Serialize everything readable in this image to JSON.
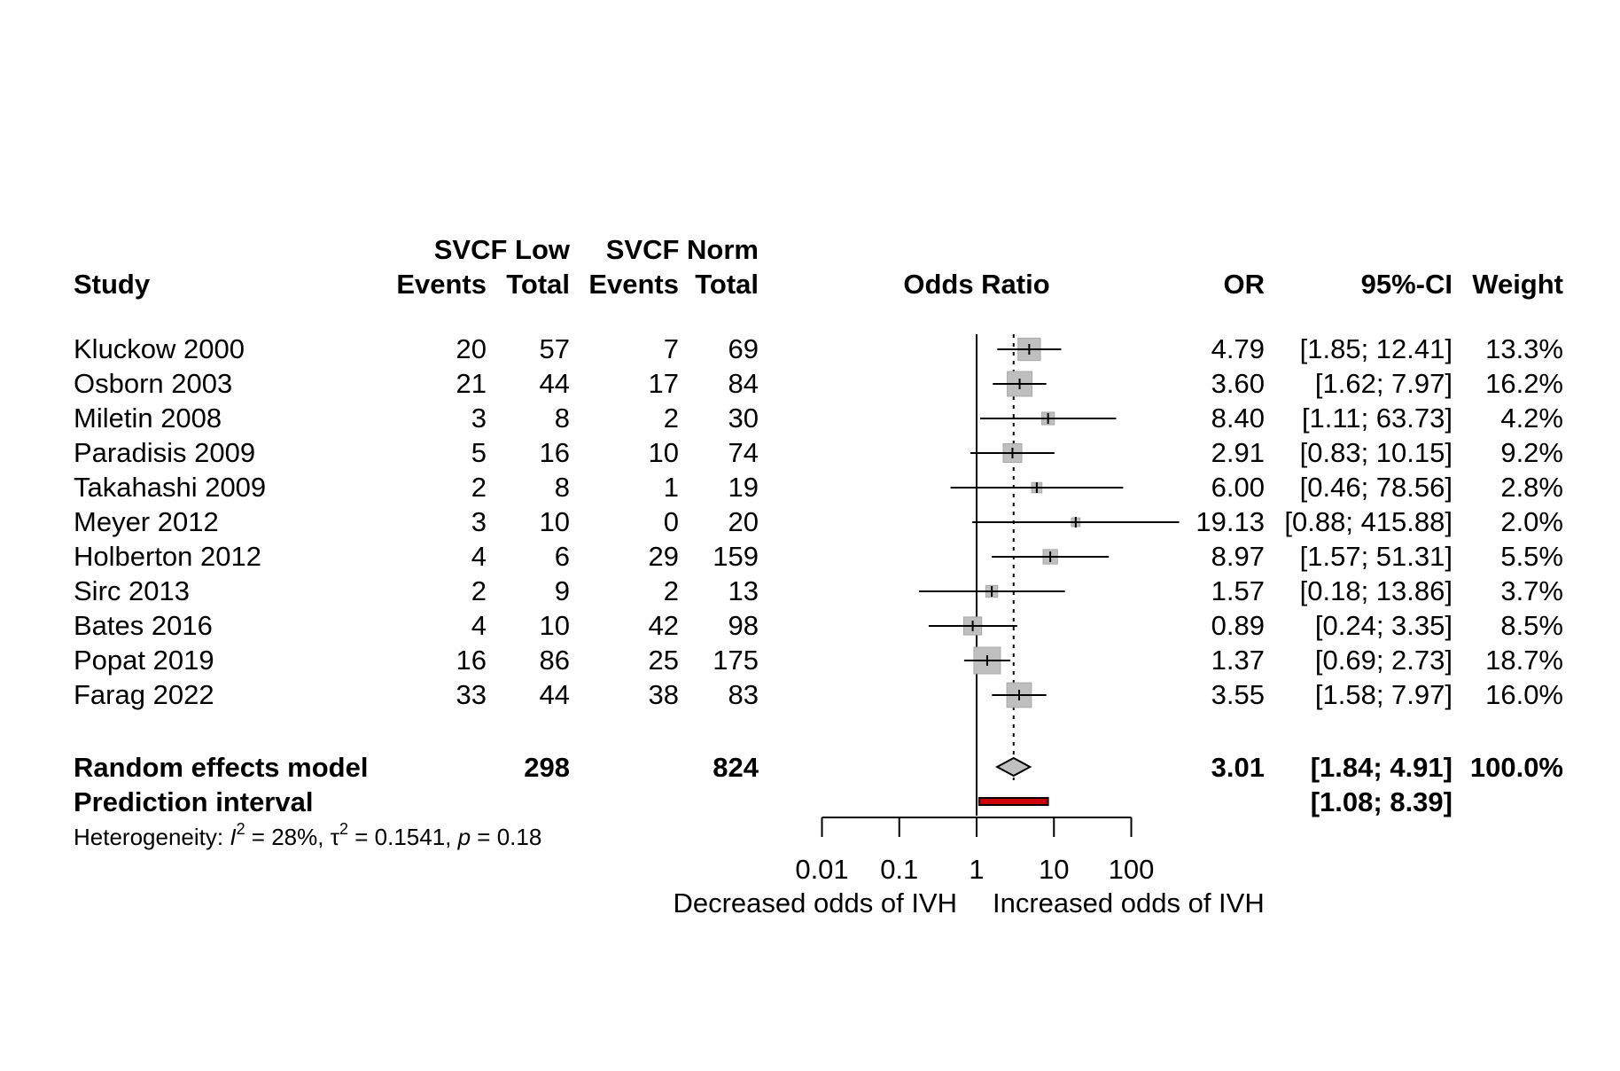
{
  "headers": {
    "group1": "SVCF Low",
    "group2": "SVCF Norm",
    "study": "Study",
    "events1": "Events",
    "total1": "Total",
    "events2": "Events",
    "total2": "Total",
    "effect": "Odds Ratio",
    "or": "OR",
    "ci": "95%-CI",
    "weight": "Weight"
  },
  "studies": [
    {
      "study": "Kluckow 2000",
      "e1": "20",
      "n1": "57",
      "e2": "7",
      "n2": "69",
      "or_text": "4.79",
      "ci_text": "[1.85; 12.41]",
      "weight_text": "13.3%"
    },
    {
      "study": "Osborn 2003",
      "e1": "21",
      "n1": "44",
      "e2": "17",
      "n2": "84",
      "or_text": "3.60",
      "ci_text": "[1.62; 7.97]",
      "weight_text": "16.2%"
    },
    {
      "study": "Miletin 2008",
      "e1": "3",
      "n1": "8",
      "e2": "2",
      "n2": "30",
      "or_text": "8.40",
      "ci_text": "[1.11; 63.73]",
      "weight_text": "4.2%"
    },
    {
      "study": "Paradisis 2009",
      "e1": "5",
      "n1": "16",
      "e2": "10",
      "n2": "74",
      "or_text": "2.91",
      "ci_text": "[0.83; 10.15]",
      "weight_text": "9.2%"
    },
    {
      "study": "Takahashi 2009",
      "e1": "2",
      "n1": "8",
      "e2": "1",
      "n2": "19",
      "or_text": "6.00",
      "ci_text": "[0.46; 78.56]",
      "weight_text": "2.8%"
    },
    {
      "study": "Meyer 2012",
      "e1": "3",
      "n1": "10",
      "e2": "0",
      "n2": "20",
      "or_text": "19.13",
      "ci_text": "[0.88; 415.88]",
      "weight_text": "2.0%"
    },
    {
      "study": "Holberton 2012",
      "e1": "4",
      "n1": "6",
      "e2": "29",
      "n2": "159",
      "or_text": "8.97",
      "ci_text": "[1.57; 51.31]",
      "weight_text": "5.5%"
    },
    {
      "study": "Sirc 2013",
      "e1": "2",
      "n1": "9",
      "e2": "2",
      "n2": "13",
      "or_text": "1.57",
      "ci_text": "[0.18; 13.86]",
      "weight_text": "3.7%"
    },
    {
      "study": "Bates 2016",
      "e1": "4",
      "n1": "10",
      "e2": "42",
      "n2": "98",
      "or_text": "0.89",
      "ci_text": "[0.24; 3.35]",
      "weight_text": "8.5%"
    },
    {
      "study": "Popat 2019",
      "e1": "16",
      "n1": "86",
      "e2": "25",
      "n2": "175",
      "or_text": "1.37",
      "ci_text": "[0.69; 2.73]",
      "weight_text": "18.7%"
    },
    {
      "study": "Farag 2022",
      "e1": "33",
      "n1": "44",
      "e2": "38",
      "n2": "83",
      "or_text": "3.55",
      "ci_text": "[1.58; 7.97]",
      "weight_text": "16.0%"
    }
  ],
  "pooled": {
    "label": "Random effects model",
    "n1": "298",
    "n2": "824",
    "or_text": "3.01",
    "ci_text": "[1.84; 4.91]",
    "weight_text": "100.0%"
  },
  "prediction": {
    "label": "Prediction interval",
    "ci_text": "[1.08; 8.39]"
  },
  "heterogeneity": {
    "prefix": "Heterogeneity: ",
    "i2_symbol": "I",
    "i2_value": " = 28%, ",
    "tau2_symbol": "τ",
    "tau2_value": " = 0.1541, ",
    "p_symbol": "p",
    "p_value": " = 0.18",
    "sup": "2"
  },
  "axis_labels": {
    "left": "Decreased odds of IVH",
    "right": "Increased odds of IVH"
  },
  "colors": {
    "square": "#bfbfbf",
    "square_stroke": "#a8a8a8",
    "diamond": "#c0c0c0",
    "prediction": "#cc0000"
  },
  "chart_data": {
    "type": "forest",
    "scale": "log",
    "xlim": [
      0.01,
      100
    ],
    "x_ticks": [
      0.01,
      0.1,
      1,
      10,
      100
    ],
    "x_tick_labels": [
      "0.01",
      "0.1",
      "1",
      "10",
      "100"
    ],
    "reference_line": 1,
    "series": [
      {
        "study": "Kluckow 2000",
        "or": 4.79,
        "lower": 1.85,
        "upper": 12.41,
        "weight": 13.3
      },
      {
        "study": "Osborn 2003",
        "or": 3.6,
        "lower": 1.62,
        "upper": 7.97,
        "weight": 16.2
      },
      {
        "study": "Miletin 2008",
        "or": 8.4,
        "lower": 1.11,
        "upper": 63.73,
        "weight": 4.2
      },
      {
        "study": "Paradisis 2009",
        "or": 2.91,
        "lower": 0.83,
        "upper": 10.15,
        "weight": 9.2
      },
      {
        "study": "Takahashi 2009",
        "or": 6.0,
        "lower": 0.46,
        "upper": 78.56,
        "weight": 2.8
      },
      {
        "study": "Meyer 2012",
        "or": 19.13,
        "lower": 0.88,
        "upper": 415.88,
        "weight": 2.0
      },
      {
        "study": "Holberton 2012",
        "or": 8.97,
        "lower": 1.57,
        "upper": 51.31,
        "weight": 5.5
      },
      {
        "study": "Sirc 2013",
        "or": 1.57,
        "lower": 0.18,
        "upper": 13.86,
        "weight": 3.7
      },
      {
        "study": "Bates 2016",
        "or": 0.89,
        "lower": 0.24,
        "upper": 3.35,
        "weight": 8.5
      },
      {
        "study": "Popat 2019",
        "or": 1.37,
        "lower": 0.69,
        "upper": 2.73,
        "weight": 18.7
      },
      {
        "study": "Farag 2022",
        "or": 3.55,
        "lower": 1.58,
        "upper": 7.97,
        "weight": 16.0
      }
    ],
    "pooled": {
      "or": 3.01,
      "lower": 1.84,
      "upper": 4.91,
      "weight": 100.0
    },
    "prediction_interval": {
      "lower": 1.08,
      "upper": 8.39
    }
  }
}
